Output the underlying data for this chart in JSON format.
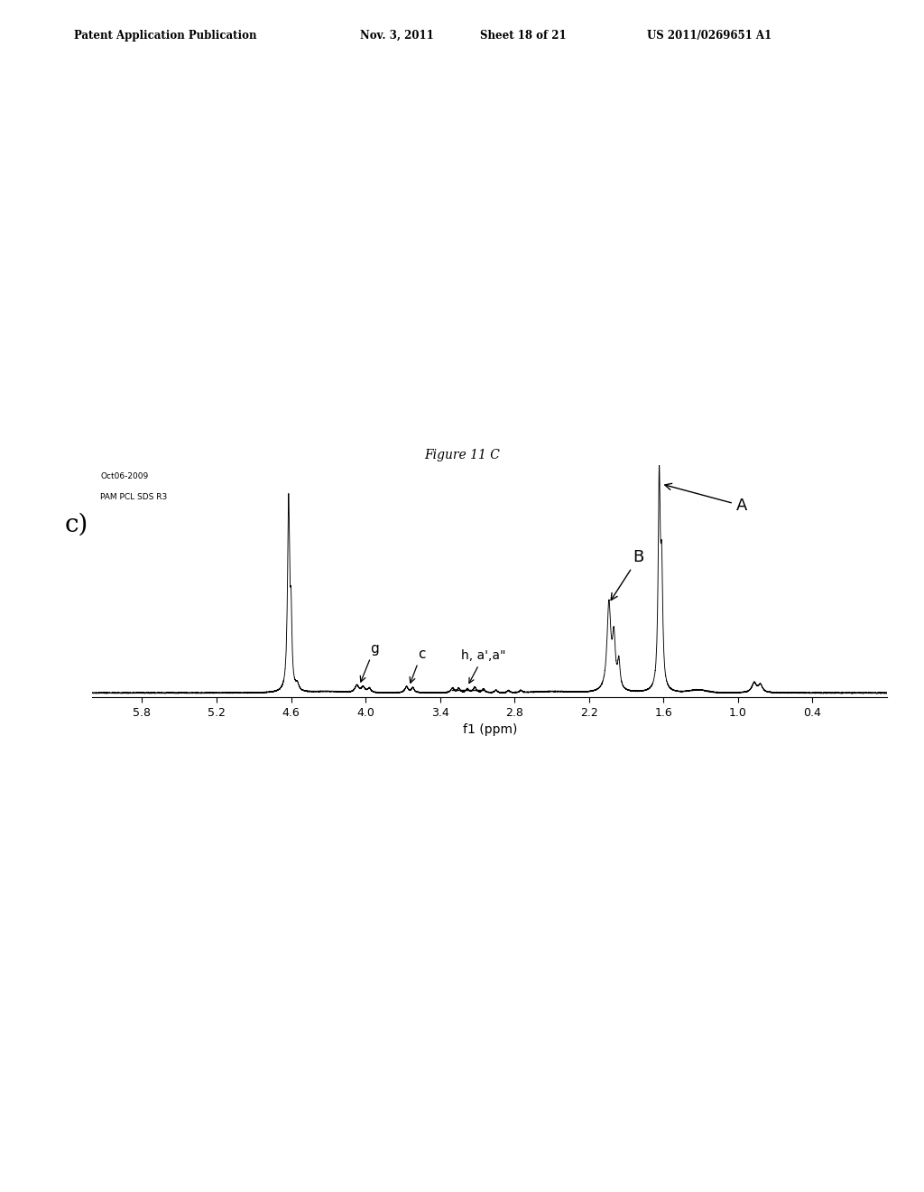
{
  "header": "Patent Application Publication          Nov. 3, 2011    Sheet 18 of 21          US 2011/0269651 A1",
  "title": "Figure 11 C",
  "xlabel": "f1 (ppm)",
  "watermark_line1": "Oct06-2009",
  "watermark_line2": "PAM PCL SDS R3",
  "label_c": "c)",
  "annotation_A": "A",
  "annotation_B": "B",
  "annotation_g": "g",
  "annotation_c": "c",
  "annotation_haa": "h, a',a\"",
  "xmin": 6.2,
  "xmax": -0.2,
  "xticks": [
    5.8,
    5.2,
    4.6,
    4.0,
    3.4,
    2.8,
    2.2,
    1.6,
    1.0,
    0.4
  ],
  "background_color": "#ffffff",
  "line_color": "#000000",
  "fig_width": 10.24,
  "fig_height": 13.2,
  "dpi": 100
}
